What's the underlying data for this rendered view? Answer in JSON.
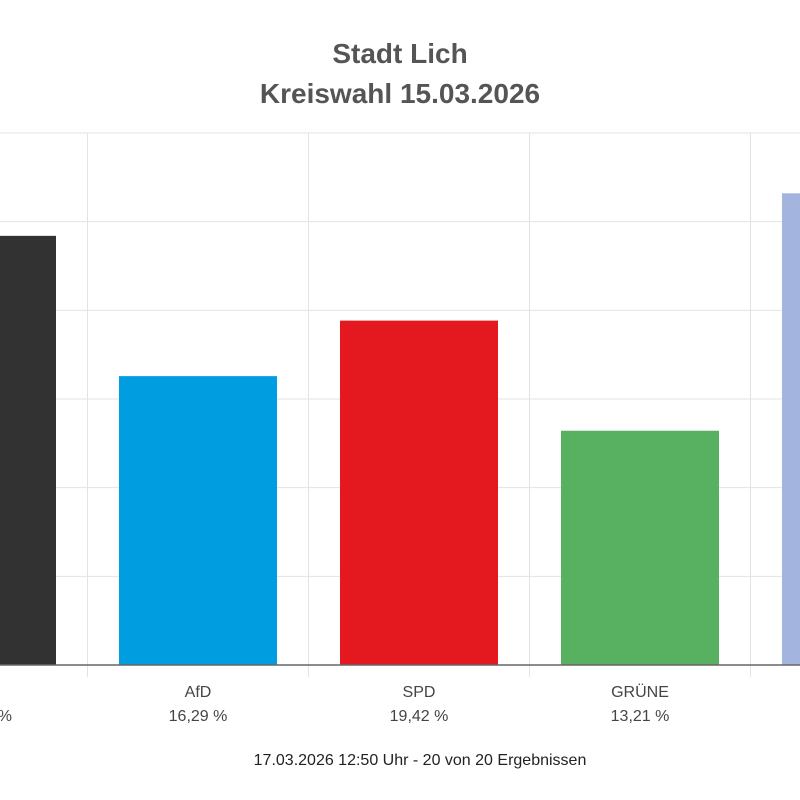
{
  "header": {
    "title_line1": "Stadt Lich",
    "title_line2": "Kreiswahl 15.03.2026"
  },
  "footer": {
    "status": "17.03.2026 12:50 Uhr - 20 von 20 Ergebnissen"
  },
  "chart_data": {
    "type": "bar",
    "ylim": [
      0,
      30
    ],
    "grid": true,
    "categories": [
      "",
      "AfD",
      "SPD",
      "GRÜNE",
      ""
    ],
    "value_labels": [
      "%",
      "16,29 %",
      "19,42 %",
      "13,21 %",
      ""
    ],
    "values": [
      24.2,
      16.29,
      19.42,
      13.21,
      26.6
    ],
    "colors": [
      "#333233",
      "#009ee0",
      "#e3191f",
      "#57b160",
      "#a3b5df"
    ]
  }
}
